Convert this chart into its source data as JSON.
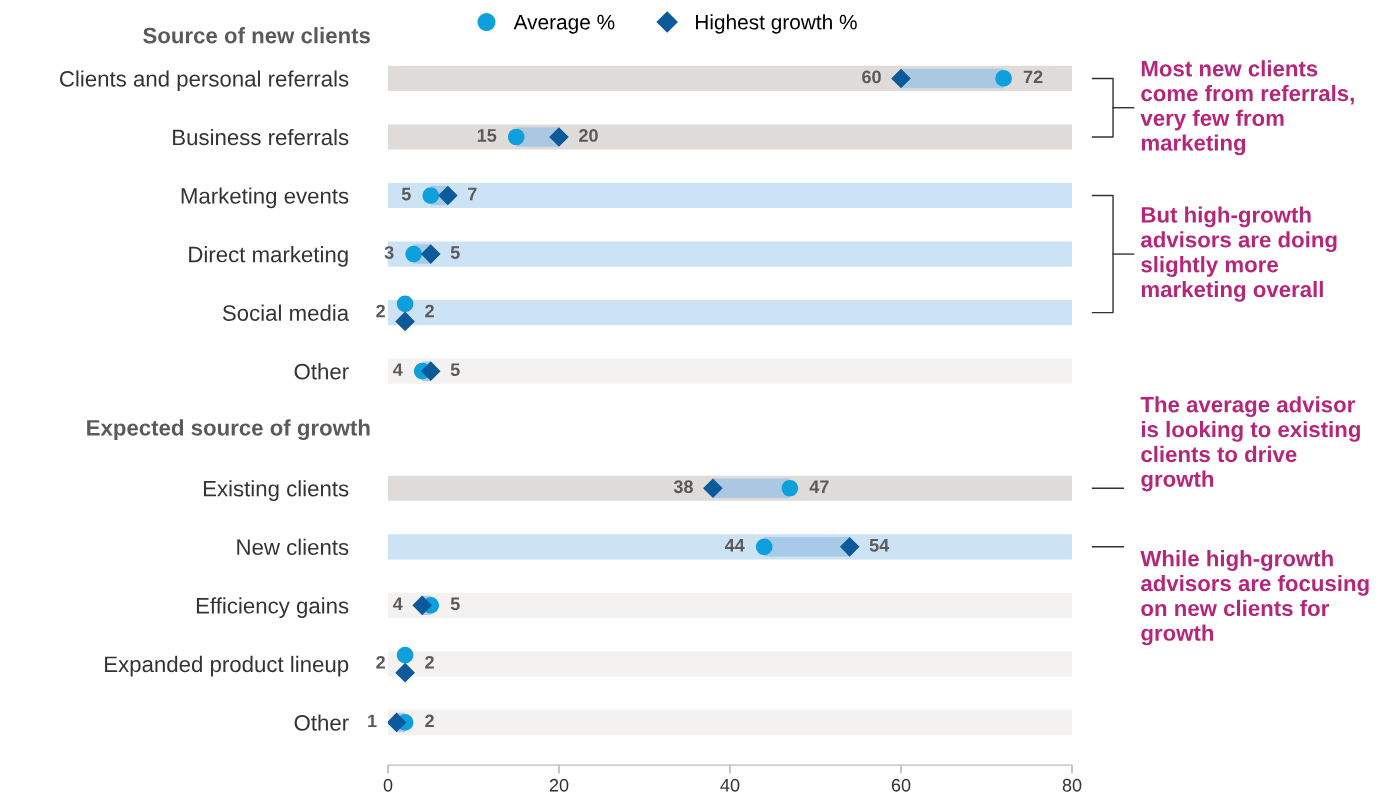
{
  "chart_data": {
    "type": "scatter",
    "orientation": "horizontal",
    "categories": [
      "Clients and personal referrals",
      "Business referrals",
      "Marketing events",
      "Direct marketing",
      "Social media",
      "Other",
      null,
      "Existing clients",
      "New clients",
      "Efficiency gains",
      "Expanded product lineup",
      "Other"
    ],
    "series": [
      {
        "type": "bar",
        "values": [
          80,
          80,
          80,
          80,
          80,
          80,
          null,
          80,
          80,
          80,
          80,
          80
        ],
        "colors": [
          "#dedbd8",
          "#dedbd8",
          "#cce3f5",
          "#cce3f5",
          "#cce3f5",
          "#f3f2f1",
          null,
          "#dedbd8",
          "#cce3f5",
          "#f3f2f1",
          "#f3f2f1",
          "#f3f2f1"
        ]
      },
      {
        "name": "Average %",
        "color": "#0ea0dc",
        "marker": "circle",
        "values": [
          72,
          15,
          5,
          3,
          2,
          4,
          null,
          47,
          44,
          5,
          2,
          2
        ],
        "value_labels": [
          "72",
          "15",
          "5",
          "3",
          "2",
          "4",
          null,
          "47",
          "44",
          "5",
          "2",
          "2"
        ]
      },
      {
        "name": "Highest growth %",
        "color": "#0d5a9a",
        "marker": "diamond",
        "values": [
          60,
          20,
          7,
          5,
          2,
          5,
          null,
          38,
          54,
          4,
          2,
          1
        ],
        "value_labels": [
          "60",
          "20",
          "7",
          "5",
          "2",
          "5",
          null,
          "38",
          "54",
          "4",
          "2",
          "1"
        ]
      }
    ],
    "xlim": [
      0,
      80
    ],
    "xticks": [
      0,
      20,
      40,
      60,
      80
    ],
    "grid": false,
    "legend": "top",
    "annotations": [
      "Source of new clients",
      "Expected source of growth",
      "Most new clients\ncome from referrals,\nvery few from\nmarketing",
      "But high-growth\nadvisors are doing\nslightly more\nmarketing overall",
      "The average advisor\nis looking to existing\nclients to drive\ngrowth",
      "While high-growth\nadvisors are focusing\non new clients for\ngrowth"
    ]
  }
}
